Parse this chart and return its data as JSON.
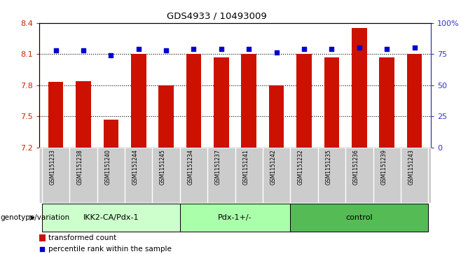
{
  "title": "GDS4933 / 10493009",
  "samples": [
    "GSM1151233",
    "GSM1151238",
    "GSM1151240",
    "GSM1151244",
    "GSM1151245",
    "GSM1151234",
    "GSM1151237",
    "GSM1151241",
    "GSM1151242",
    "GSM1151232",
    "GSM1151235",
    "GSM1151236",
    "GSM1151239",
    "GSM1151243"
  ],
  "bar_values": [
    7.83,
    7.84,
    7.47,
    8.1,
    7.8,
    8.1,
    8.07,
    8.1,
    7.8,
    8.1,
    8.07,
    8.35,
    8.07,
    8.1
  ],
  "percentile_values": [
    78,
    78,
    74,
    79,
    78,
    79,
    79,
    79,
    76,
    79,
    79,
    80,
    79,
    80
  ],
  "ylim_left": [
    7.2,
    8.4
  ],
  "ylim_right": [
    0,
    100
  ],
  "yticks_left": [
    7.2,
    7.5,
    7.8,
    8.1,
    8.4
  ],
  "yticks_right": [
    0,
    25,
    50,
    75,
    100
  ],
  "ytick_labels_right": [
    "0",
    "25",
    "50",
    "75",
    "100%"
  ],
  "bar_color": "#cc1100",
  "scatter_color": "#0000cc",
  "bar_bottom": 7.2,
  "groups": [
    {
      "label": "IKK2-CA/Pdx-1",
      "start": 0,
      "end": 5,
      "color": "#ccffcc"
    },
    {
      "label": "Pdx-1+/-",
      "start": 5,
      "end": 9,
      "color": "#aaffaa"
    },
    {
      "label": "control",
      "start": 9,
      "end": 14,
      "color": "#55bb55"
    }
  ],
  "group_label_prefix": "genotype/variation",
  "legend_bar_label": "transformed count",
  "legend_scatter_label": "percentile rank within the sample",
  "left_tick_color": "#cc2200",
  "right_tick_color": "#3333cc",
  "grid_color": "#000000",
  "background_color": "#ffffff",
  "plot_bg": "#ffffff",
  "bar_width": 0.55,
  "sample_bg": "#cccccc"
}
